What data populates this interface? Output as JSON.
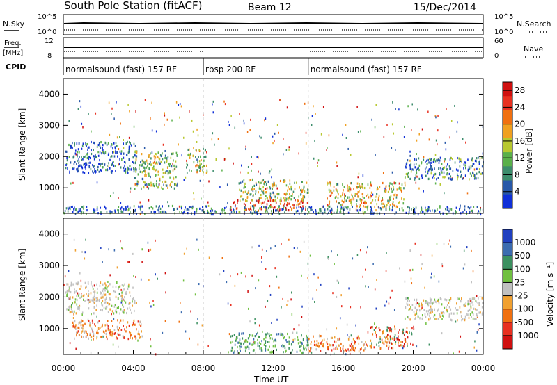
{
  "header": {
    "title": "South Pole Station (fitACF)",
    "beam": "Beam 12",
    "date": "15/Dec/2014"
  },
  "aux_panels": {
    "nsky_label": "N.Sky",
    "nsearch_label": "N.Search",
    "nsky_ticks": [
      "10^5",
      "10^0"
    ],
    "freq_label": "Freq.",
    "freq_unit": "[MHz]",
    "freq_ticks": [
      "12",
      "8"
    ],
    "nave_label": "Nave",
    "nave_ticks": [
      "60",
      "0"
    ],
    "cpid_label": "CPID"
  },
  "cpid_segments": [
    {
      "start": 0,
      "end": 8,
      "label": "normalsound (fast) 157 RF"
    },
    {
      "start": 8,
      "end": 14,
      "label": "rbsp 200 RF"
    },
    {
      "start": 14,
      "end": 24,
      "label": "normalsound (fast) 157 RF"
    }
  ],
  "chart_data": [
    {
      "type": "heatmap",
      "title": "",
      "xlabel": "Time UT",
      "ylabel": "Slant Range [km]",
      "xlim": [
        0,
        24
      ],
      "ylim": [
        180,
        4500
      ],
      "x_ticks": [
        "00:00",
        "04:00",
        "08:00",
        "12:00",
        "16:00",
        "20:00",
        "00:00"
      ],
      "y_ticks": [
        1000,
        2000,
        3000,
        4000
      ],
      "colorbar": {
        "label": "Power [dB]",
        "ticks": [
          4,
          8,
          12,
          16,
          20,
          24,
          28
        ],
        "range": [
          0,
          30
        ],
        "colors": [
          "#1030d8",
          "#2858a8",
          "#3c8c6c",
          "#5ab04a",
          "#b8c830",
          "#f0a020",
          "#f07010",
          "#e83020",
          "#d01010"
        ]
      },
      "regions": [
        {
          "t": [
            0.1,
            4.1
          ],
          "r": [
            1500,
            2500
          ],
          "level": 0.15
        },
        {
          "t": [
            4.0,
            6.5
          ],
          "r": [
            1000,
            2200
          ],
          "level": 0.4
        },
        {
          "t": [
            7.0,
            8.2
          ],
          "r": [
            1500,
            2300
          ],
          "level": 0.45
        },
        {
          "t": [
            9.5,
            14.0
          ],
          "r": [
            300,
            650
          ],
          "level": 0.85
        },
        {
          "t": [
            10.0,
            14.0
          ],
          "r": [
            600,
            1300
          ],
          "level": 0.45
        },
        {
          "t": [
            15.0,
            19.5
          ],
          "r": [
            400,
            1200
          ],
          "level": 0.55
        },
        {
          "t": [
            19.5,
            24.0
          ],
          "r": [
            1300,
            2000
          ],
          "level": 0.25
        },
        {
          "t": [
            0.0,
            24.0
          ],
          "r": [
            180,
            450
          ],
          "level": 0.2
        }
      ]
    },
    {
      "type": "heatmap",
      "title": "",
      "xlabel": "Time UT",
      "ylabel": "Slant Range [km]",
      "xlim": [
        0,
        24
      ],
      "ylim": [
        180,
        4500
      ],
      "x_ticks": [
        "00:00",
        "04:00",
        "08:00",
        "12:00",
        "16:00",
        "20:00",
        "00:00"
      ],
      "y_ticks": [
        1000,
        2000,
        3000,
        4000
      ],
      "colorbar": {
        "label": "Velocity [m s⁻¹]",
        "ticks": [
          "1000",
          "500",
          "100",
          "25",
          "-25",
          "-100",
          "-500",
          "-1000"
        ],
        "colors": [
          "#2040c0",
          "#3c6cb0",
          "#3c9060",
          "#70c040",
          "#c0c0c0",
          "#f0a030",
          "#f07010",
          "#e83020",
          "#d01010"
        ]
      },
      "regions": [
        {
          "t": [
            0.1,
            4.1
          ],
          "r": [
            1500,
            2500
          ],
          "kind": "gray"
        },
        {
          "t": [
            0.5,
            4.5
          ],
          "r": [
            700,
            1300
          ],
          "kind": "orange"
        },
        {
          "t": [
            9.5,
            14.0
          ],
          "r": [
            250,
            900
          ],
          "kind": "green"
        },
        {
          "t": [
            14.0,
            17.5
          ],
          "r": [
            300,
            800
          ],
          "kind": "orange"
        },
        {
          "t": [
            17.5,
            20.0
          ],
          "r": [
            400,
            1100
          ],
          "kind": "mixed"
        },
        {
          "t": [
            19.5,
            24.0
          ],
          "r": [
            1300,
            2000
          ],
          "kind": "gray"
        }
      ]
    }
  ]
}
